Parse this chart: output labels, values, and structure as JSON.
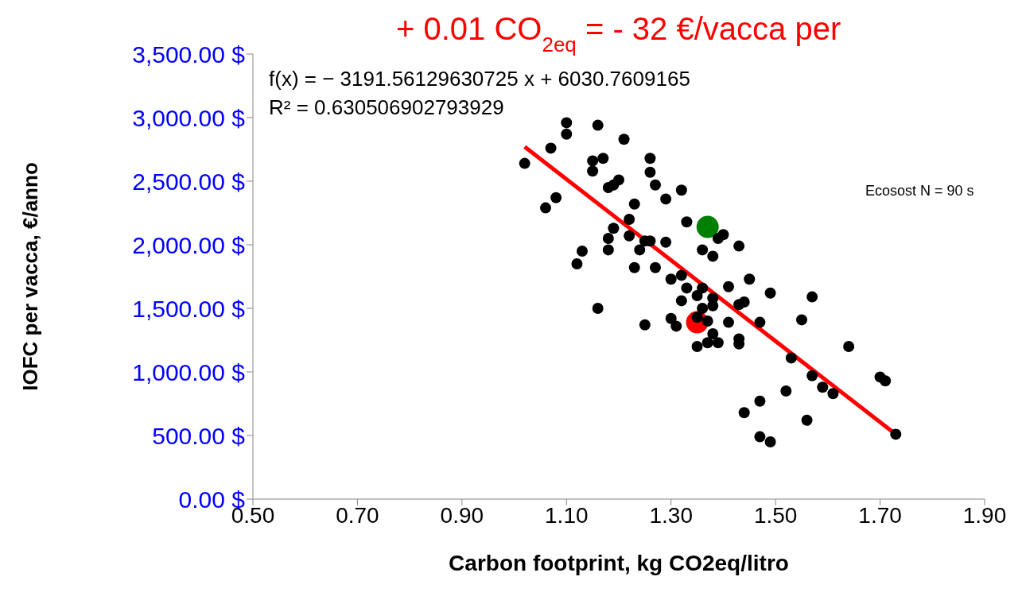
{
  "chart_data": {
    "type": "scatter",
    "title": "+ 0.01 CO$_{2eq}$ = - 32 €/vacca per",
    "xlabel": "Carbon footprint, kg CO2eq/litro",
    "ylabel": "IOFC per vacca, €/anno",
    "annotations": [
      "f(x) = − 3191.56129630725 x + 6030.7609165",
      "R² = 0.630506902793929",
      "Ecosost N = 90 s"
    ],
    "xlim": [
      0.5,
      1.9
    ],
    "xticks": [
      {
        "value": 0.5,
        "label": "0.50"
      },
      {
        "value": 0.7,
        "label": "0.70"
      },
      {
        "value": 0.9,
        "label": "0.90"
      },
      {
        "value": 1.1,
        "label": "1.10"
      },
      {
        "value": 1.3,
        "label": "1.30"
      },
      {
        "value": 1.5,
        "label": "1.50"
      },
      {
        "value": 1.7,
        "label": "1.70"
      },
      {
        "value": 1.9,
        "label": "1.90"
      }
    ],
    "ylim": [
      0,
      3500
    ],
    "yticks": [
      {
        "value": 0,
        "label": "0.00 $"
      },
      {
        "value": 500,
        "label": "500.00 $"
      },
      {
        "value": 1000,
        "label": "1,000.00 $"
      },
      {
        "value": 1500,
        "label": "1,500.00 $"
      },
      {
        "value": 2000,
        "label": "2,000.00 $"
      },
      {
        "value": 2500,
        "label": "2,500.00 $"
      },
      {
        "value": 3000,
        "label": "3,000.00 $"
      },
      {
        "value": 3500,
        "label": "3,500.00 $"
      }
    ],
    "grid": false,
    "marker": "circle",
    "series": [
      {
        "color": "#000000",
        "x": [
          1.02,
          1.1,
          1.1,
          1.16,
          1.21,
          1.07,
          1.15,
          1.17,
          1.15,
          1.26,
          1.26,
          1.2,
          1.19,
          1.18,
          1.27,
          1.32,
          1.29,
          1.23,
          1.08,
          1.06,
          1.22,
          1.19,
          1.33,
          1.18,
          1.22,
          1.25,
          1.26,
          1.29,
          1.13,
          1.18,
          1.24,
          1.12,
          1.23,
          1.27,
          1.36,
          1.4,
          1.39,
          1.43,
          1.38,
          1.3,
          1.32,
          1.45,
          1.41,
          1.33,
          1.35,
          1.36,
          1.32,
          1.38,
          1.38,
          1.16,
          1.36,
          1.49,
          1.43,
          1.44,
          1.57,
          1.35,
          1.37,
          1.3,
          1.31,
          1.25,
          1.41,
          1.47,
          1.55,
          1.38,
          1.37,
          1.39,
          1.43,
          1.43,
          1.35,
          1.64,
          1.53,
          1.57,
          1.59,
          1.61,
          1.7,
          1.71,
          1.52,
          1.47,
          1.44,
          1.56,
          1.47,
          1.49,
          1.73
        ],
        "values": [
          2640,
          2960,
          2870,
          2940,
          2830,
          2760,
          2660,
          2680,
          2580,
          2680,
          2570,
          2510,
          2470,
          2450,
          2470,
          2430,
          2360,
          2320,
          2370,
          2290,
          2200,
          2130,
          2180,
          2050,
          2070,
          2030,
          2030,
          2020,
          1950,
          1960,
          1960,
          1850,
          1820,
          1820,
          1960,
          2080,
          2050,
          1990,
          1910,
          1730,
          1760,
          1730,
          1670,
          1660,
          1600,
          1660,
          1560,
          1580,
          1520,
          1500,
          1500,
          1620,
          1530,
          1550,
          1590,
          1430,
          1400,
          1420,
          1360,
          1370,
          1390,
          1390,
          1410,
          1300,
          1230,
          1230,
          1260,
          1220,
          1200,
          1200,
          1110,
          970,
          880,
          830,
          960,
          930,
          850,
          770,
          680,
          620,
          490,
          450,
          510
        ]
      },
      {
        "color": "#008000",
        "x": [
          1.37
        ],
        "values": [
          2140
        ]
      },
      {
        "color": "#ff0000",
        "x": [
          1.35
        ],
        "values": [
          1390
        ]
      },
      {
        "type": "line",
        "marker": "none",
        "color": "#ff0000",
        "x": [
          1.02,
          1.73
        ],
        "values": [
          2770,
          510
        ]
      }
    ]
  }
}
